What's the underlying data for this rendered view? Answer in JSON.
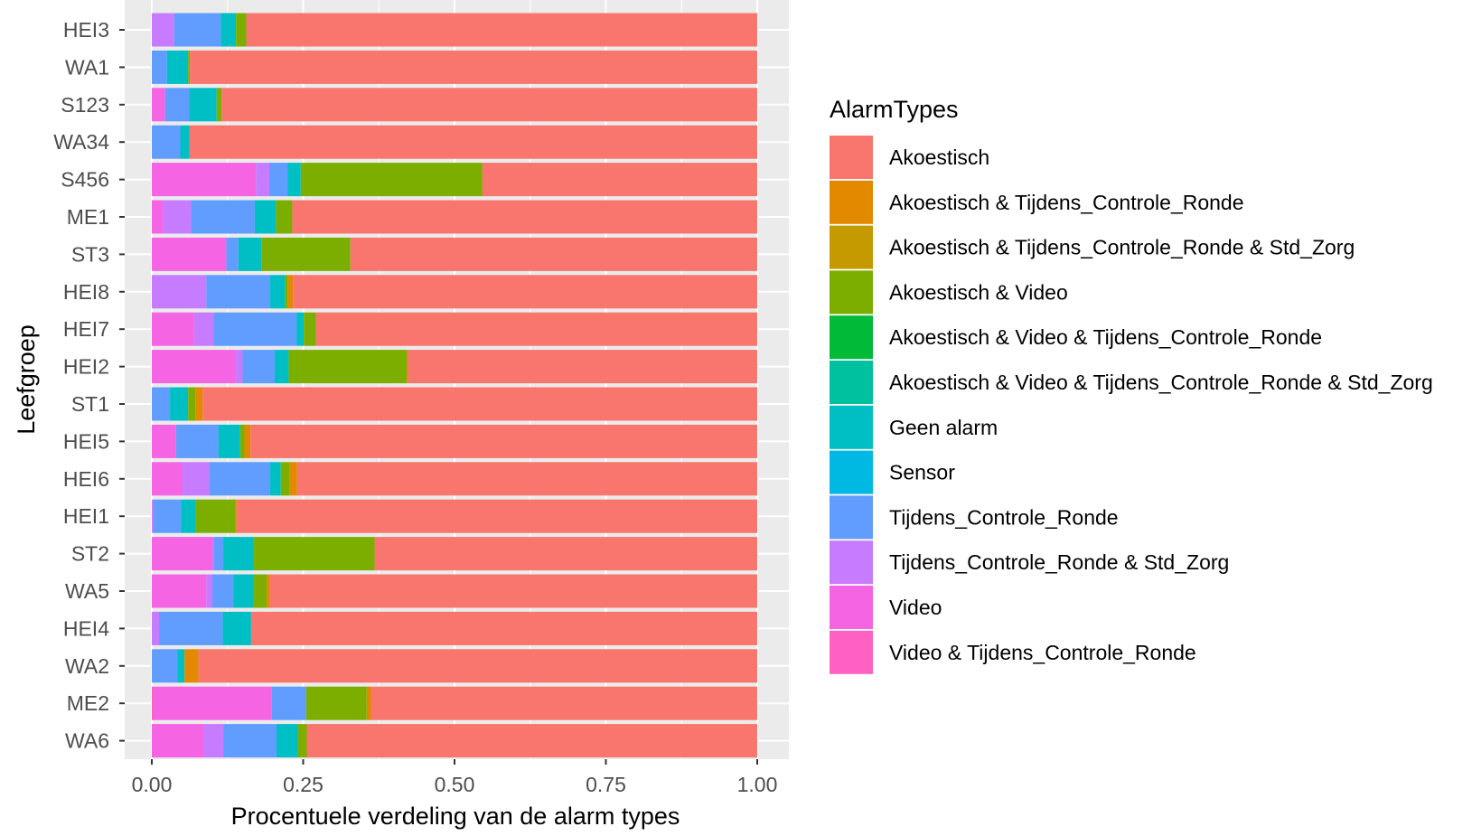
{
  "chart_data": {
    "type": "bar",
    "orientation": "horizontal",
    "stacked": "fill",
    "xlabel": "Procentuele verdeling van de alarm types",
    "ylabel": "Leefgroep",
    "xlim": [
      0,
      1
    ],
    "x_ticks": [
      "0.00",
      "0.25",
      "0.50",
      "0.75",
      "1.00"
    ],
    "grid": true,
    "legend_position": "right",
    "legend_title": "AlarmTypes",
    "categories": [
      "HEI3",
      "WA1",
      "S123",
      "WA34",
      "S456",
      "ME1",
      "ST3",
      "HEI8",
      "HEI7",
      "HEI2",
      "ST1",
      "HEI5",
      "HEI6",
      "HEI1",
      "ST2",
      "WA5",
      "HEI4",
      "WA2",
      "ME2",
      "WA6"
    ],
    "series": [
      {
        "name": "Video & Tijdens_Controle_Ronde",
        "color": "#FF61C3",
        "values": [
          0,
          0,
          0,
          0,
          0,
          0,
          0,
          0,
          0,
          0,
          0,
          0,
          0,
          0,
          0,
          0,
          0,
          0,
          0.003,
          0
        ]
      },
      {
        "name": "Video",
        "color": "#F564E3",
        "values": [
          0,
          0,
          0.022,
          0,
          0.172,
          0.018,
          0.123,
          0,
          0.07,
          0.138,
          0,
          0.04,
          0.05,
          0,
          0.1,
          0.09,
          0,
          0,
          0.195,
          0.085
        ]
      },
      {
        "name": "Tijdens_Controle_Ronde & Std_Zorg",
        "color": "#C77CFF",
        "values": [
          0.037,
          0,
          0,
          0,
          0.022,
          0.047,
          0,
          0.09,
          0.032,
          0.012,
          0,
          0,
          0.045,
          0.003,
          0.003,
          0.01,
          0.012,
          0,
          0,
          0.033
        ]
      },
      {
        "name": "Tijdens_Controle_Ronde",
        "color": "#619CFF",
        "values": [
          0.077,
          0.025,
          0.04,
          0.047,
          0.03,
          0.105,
          0.02,
          0.105,
          0.137,
          0.053,
          0.03,
          0.07,
          0.1,
          0.045,
          0.015,
          0.035,
          0.105,
          0.042,
          0.057,
          0.088
        ]
      },
      {
        "name": "Sensor",
        "color": "#00B9E3",
        "values": [
          0,
          0,
          0,
          0,
          0,
          0,
          0,
          0,
          0,
          0,
          0,
          0,
          0,
          0,
          0,
          0,
          0,
          0,
          0,
          0
        ]
      },
      {
        "name": "Geen alarm",
        "color": "#00BFC4",
        "values": [
          0.025,
          0.035,
          0.045,
          0.015,
          0.022,
          0.035,
          0.038,
          0.025,
          0.012,
          0.023,
          0.03,
          0.036,
          0.018,
          0.025,
          0.05,
          0.033,
          0.047,
          0.012,
          0,
          0.035
        ]
      },
      {
        "name": "Akoestisch & Video & Tijdens_Controle_Ronde & Std_Zorg",
        "color": "#00C19F",
        "values": [
          0,
          0,
          0,
          0,
          0,
          0,
          0,
          0,
          0,
          0,
          0,
          0,
          0,
          0,
          0,
          0,
          0,
          0,
          0,
          0
        ]
      },
      {
        "name": "Akoestisch & Video & Tijdens_Controle_Ronde",
        "color": "#00BA38",
        "values": [
          0,
          0,
          0,
          0,
          0,
          0,
          0,
          0,
          0,
          0,
          0,
          0,
          0,
          0,
          0,
          0,
          0,
          0,
          0,
          0
        ]
      },
      {
        "name": "Akoestisch & Video",
        "color": "#7CAE00",
        "values": [
          0.017,
          0.003,
          0.008,
          0,
          0.3,
          0.027,
          0.147,
          0.005,
          0.02,
          0.195,
          0.012,
          0.007,
          0.015,
          0.065,
          0.2,
          0.022,
          0,
          0,
          0.1,
          0.015
        ]
      },
      {
        "name": "Akoestisch & Tijdens_Controle_Ronde & Std_Zorg",
        "color": "#C49A00",
        "values": [
          0,
          0,
          0,
          0,
          0,
          0,
          0,
          0,
          0,
          0,
          0,
          0,
          0,
          0,
          0,
          0,
          0,
          0,
          0,
          0
        ]
      },
      {
        "name": "Akoestisch & Tijdens_Controle_Ronde",
        "color": "#E38900",
        "values": [
          0,
          0,
          0,
          0,
          0,
          0,
          0,
          0.008,
          0,
          0.002,
          0.012,
          0.01,
          0.012,
          0.002,
          0,
          0.005,
          0,
          0.023,
          0.007,
          0
        ]
      },
      {
        "name": "Akoestisch",
        "color": "#F8766D",
        "values": [
          0.844,
          0.937,
          0.885,
          0.938,
          0.454,
          0.768,
          0.672,
          0.767,
          0.729,
          0.577,
          0.916,
          0.837,
          0.76,
          0.86,
          0.632,
          0.805,
          0.836,
          0.923,
          0.638,
          0.744
        ]
      }
    ],
    "legend_order": [
      "Akoestisch",
      "Akoestisch & Tijdens_Controle_Ronde",
      "Akoestisch & Tijdens_Controle_Ronde & Std_Zorg",
      "Akoestisch & Video",
      "Akoestisch & Video & Tijdens_Controle_Ronde",
      "Akoestisch & Video & Tijdens_Controle_Ronde & Std_Zorg",
      "Geen alarm",
      "Sensor",
      "Tijdens_Controle_Ronde",
      "Tijdens_Controle_Ronde & Std_Zorg",
      "Video",
      "Video & Tijdens_Controle_Ronde"
    ],
    "panel_background": "#EBEBEB",
    "gridline_color": "#FFFFFF",
    "axis_text_color": "#4D4D4D"
  }
}
